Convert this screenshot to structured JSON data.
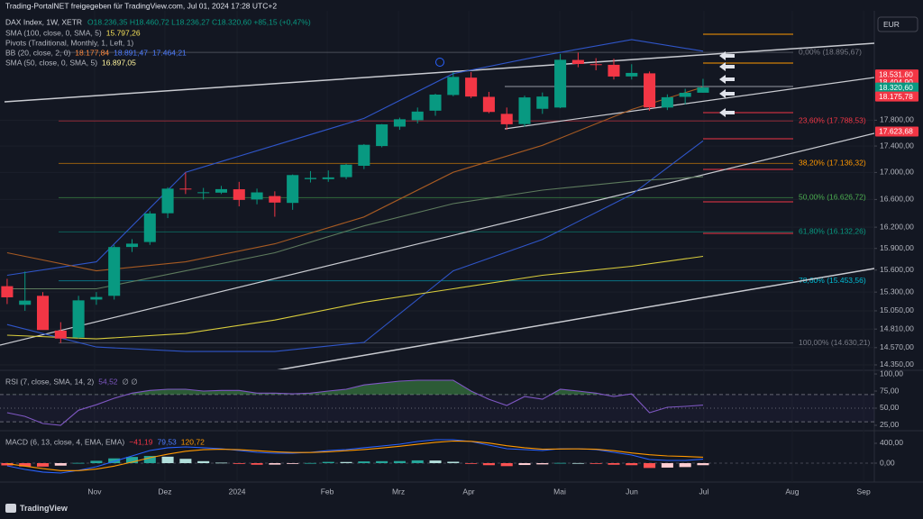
{
  "header": "Trading-PortalNET freigegeben für TradingView.com, Jul 01, 2024 17:28 UTC+2",
  "currency": "EUR",
  "brand": "TradingView",
  "chart_data": [
    {
      "type": "candlestick",
      "symbol": "DAX Index, 1W, XETR",
      "ohlc": "O18.236,35 H18.460,72 L18.236,27 C18.320,60 +85,15 (+0,47%)",
      "legend": [
        {
          "text": "SMA (100, close, 0, SMA, 5)",
          "values": [
            "15.797,26"
          ],
          "colors": [
            "#f7e25a"
          ]
        },
        {
          "text": "Pivots (Traditional, Monthly, 1, Left, 1)"
        },
        {
          "text": "BB (20, close, 2, 0)",
          "values": [
            "18.177,84",
            "18.891,47",
            "17.464,21"
          ],
          "colors": [
            "#ff8a3d",
            "#4d7cff",
            "#4d7cff"
          ]
        },
        {
          "text": "SMA (50, close, 0, SMA, 5)",
          "values": [
            "16.897,05"
          ],
          "colors": [
            "#fff59d"
          ]
        }
      ],
      "up_color": "#089981",
      "down_color": "#f23645",
      "open": [
        15380,
        15130,
        15250,
        14790,
        14700,
        15200,
        15250,
        15920,
        15990,
        16400,
        16760,
        16700,
        16700,
        16750,
        16600,
        16650,
        16550,
        16900,
        16900,
        16930,
        17100,
        17400,
        17700,
        17800,
        17950,
        18200,
        18480,
        18170,
        17900,
        17740,
        17980,
        18000,
        18770,
        18700,
        18690,
        18500,
        18550,
        18000,
        18170,
        18236.35
      ],
      "high": [
        15480,
        15580,
        15300,
        14900,
        15250,
        15300,
        15950,
        16030,
        16430,
        16780,
        17000,
        16770,
        16800,
        16860,
        16760,
        16720,
        16970,
        17020,
        17030,
        17130,
        17430,
        17740,
        17840,
        18000,
        18220,
        18570,
        18570,
        18250,
        18000,
        18190,
        18240,
        18870,
        18892,
        18800,
        18790,
        18700,
        18580,
        18210,
        18300,
        18460.72
      ],
      "low": [
        15140,
        15050,
        14800,
        14630,
        14690,
        15130,
        15200,
        15850,
        15950,
        16330,
        16680,
        16600,
        16680,
        16500,
        16530,
        16350,
        16450,
        16850,
        16860,
        16900,
        17050,
        17380,
        17650,
        17750,
        17870,
        18180,
        18150,
        17910,
        17650,
        17700,
        17900,
        17990,
        18650,
        18600,
        18450,
        18450,
        17950,
        17960,
        18050,
        18236.27
      ],
      "close": [
        15230,
        15186,
        14798,
        14687,
        15189,
        15234,
        15919,
        15967,
        16397,
        16759,
        16751,
        16706,
        16752,
        16594,
        16704,
        16555,
        16961,
        16918,
        16926,
        17117,
        17419,
        17735,
        17815,
        17936,
        18206,
        18492,
        18175,
        17930,
        17737,
        18161,
        18175,
        18773,
        18704,
        18693,
        18498,
        18557,
        18002,
        18164,
        18235,
        18320.6
      ],
      "indicators": [
        {
          "color": "#2f55c8",
          "x": [
            0,
            5,
            10,
            15,
            20,
            25,
            30,
            35,
            39
          ],
          "values": [
            15528,
            15713,
            17003,
            17411,
            17828,
            18545,
            18842,
            19110,
            18915
          ]
        },
        {
          "color": "#2f55c8",
          "x": [
            0,
            5,
            10,
            15,
            20,
            25,
            30,
            35,
            39
          ],
          "values": [
            14869,
            14578,
            14521,
            14521,
            14637,
            15589,
            16026,
            16672,
            17480
          ]
        },
        {
          "color": "#5d7a5d",
          "x": [
            0,
            5,
            10,
            15,
            20,
            25,
            30,
            35,
            39
          ],
          "values": [
            15345,
            15345,
            15589,
            15839,
            16218,
            16540,
            16737,
            16870,
            16937
          ]
        },
        {
          "color": "#a65a22",
          "x": [
            0,
            5,
            10,
            15,
            20,
            25,
            30,
            35,
            39
          ],
          "values": [
            15839,
            15589,
            15713,
            15964,
            16346,
            17003,
            17411,
            17969,
            18327
          ]
        },
        {
          "color": "#d8cc3c",
          "x": [
            0,
            5,
            10,
            15,
            20,
            25,
            30,
            35,
            39
          ],
          "values": [
            14730,
            14683,
            14753,
            14928,
            15165,
            15345,
            15528,
            15652,
            15789
          ]
        }
      ],
      "fib_levels": [
        {
          "label": "0,00% (18.895,67)",
          "value": 18895.67,
          "color": "#787b86"
        },
        {
          "label": "23,60% (17.788,53)",
          "value": 17788.53,
          "color": "#f23645"
        },
        {
          "label": "38,20% (17.136,32)",
          "value": 17136.32,
          "color": "#ff9800"
        },
        {
          "label": "50,00% (16.626,72)",
          "value": 16626.72,
          "color": "#4caf50"
        },
        {
          "label": "61,80% (16.132,26)",
          "value": 16132.26,
          "color": "#089981"
        },
        {
          "label": "78,60% (15.453,56)",
          "value": 15453.56,
          "color": "#00bcd4"
        },
        {
          "label": "100,00% (14.630,21)",
          "value": 14630.21,
          "color": "#787b86"
        }
      ],
      "price_badges": [
        {
          "label": "18.531,60",
          "value": 18531.6,
          "color": "#f23645"
        },
        {
          "label": "18.404,90",
          "value": 18404.9,
          "color": "#f23645"
        },
        {
          "label": "18.320,60",
          "value": 18320.6,
          "color": "#089981"
        },
        {
          "label": "18.175,78",
          "value": 18175.78,
          "color": "#f23645"
        },
        {
          "label": "17.623,68",
          "value": 17623.68,
          "color": "#f23645"
        }
      ],
      "log_scale": true,
      "grid": true,
      "xlim": [
        -0.4,
        48.6
      ],
      "xticks": [
        {
          "value": 4.9,
          "label": "Nov"
        },
        {
          "value": 8.84,
          "label": "Dez"
        },
        {
          "value": 12.89,
          "label": "2024"
        },
        {
          "value": 17.94,
          "label": "Feb"
        },
        {
          "value": 21.93,
          "label": "Mrz"
        },
        {
          "value": 25.87,
          "label": "Apr"
        },
        {
          "value": 30.97,
          "label": "Mai"
        },
        {
          "value": 35.01,
          "label": "Jun"
        },
        {
          "value": 39.05,
          "label": "Jul"
        },
        {
          "value": 44.0,
          "label": "Aug"
        },
        {
          "value": 48.0,
          "label": "Sep"
        }
      ],
      "ylim": [
        14293,
        19600
      ],
      "yticks": [
        {
          "value": 14350,
          "label": "14.350,00"
        },
        {
          "value": 14570,
          "label": "14.570,00"
        },
        {
          "value": 14810,
          "label": "14.810,00"
        },
        {
          "value": 15050,
          "label": "15.050,00"
        },
        {
          "value": 15300,
          "label": "15.300,00"
        },
        {
          "value": 15600,
          "label": "15.600,00"
        },
        {
          "value": 15900,
          "label": "15.900,00"
        },
        {
          "value": 16200,
          "label": "16.200,00"
        },
        {
          "value": 16600,
          "label": "16.600,00"
        },
        {
          "value": 17000,
          "label": "17.000,00"
        },
        {
          "value": 17400,
          "label": "17.400,00"
        },
        {
          "value": 17800,
          "label": "17.800,00"
        }
      ]
    },
    {
      "type": "line",
      "legend_text": "RSI (7, close, SMA, 14, 2)",
      "value_text": "54,52",
      "extra_text": "∅ ∅",
      "color": "#7e57c2",
      "fill_color": "#4caf50",
      "values": [
        43.4,
        38,
        27.6,
        25,
        47,
        55,
        64.5,
        72,
        76,
        77.6,
        77.6,
        75,
        76,
        76,
        72,
        72,
        71,
        72,
        75,
        77.6,
        84,
        86.8,
        89.5,
        90.8,
        90.8,
        90.8,
        75,
        63,
        54,
        67,
        63,
        77.6,
        75,
        72,
        67,
        71,
        43.4,
        51.3,
        52.6,
        54.52
      ],
      "bands": [
        70,
        50,
        30
      ],
      "ylim": [
        19.7,
        104
      ],
      "yticks": [
        {
          "value": 100,
          "label": "100,00"
        },
        {
          "value": 75,
          "label": "75,00"
        },
        {
          "value": 50,
          "label": "50,00"
        },
        {
          "value": 25,
          "label": "25,00"
        }
      ]
    },
    {
      "type": "macd",
      "legend_text": "MACD (6, 13, close, 4, EMA, EMA)",
      "value_texts": [
        "−41,19",
        "79,53",
        "120,72"
      ],
      "value_colors": [
        "#f23645",
        "#4d7cff",
        "#ff9800"
      ],
      "series": [
        {
          "color": "#2962ff",
          "values": [
            -55,
            -127,
            -180,
            -200,
            -145,
            -73,
            36,
            145,
            255,
            310,
            327,
            310,
            290,
            255,
            218,
            200,
            200,
            218,
            255,
            273,
            310,
            345,
            382,
            436,
            473,
            473,
            436,
            364,
            290,
            273,
            255,
            290,
            290,
            273,
            218,
            164,
            73,
            55,
            55,
            79.53
          ]
        },
        {
          "color": "#ff9800",
          "values": [
            -10,
            -60,
            -110,
            -150,
            -150,
            -120,
            -60,
            20,
            110,
            180,
            240,
            270,
            280,
            270,
            250,
            230,
            215,
            215,
            230,
            250,
            275,
            305,
            340,
            380,
            420,
            445,
            440,
            405,
            350,
            310,
            280,
            285,
            288,
            280,
            250,
            205,
            170,
            145,
            134,
            120.72
          ]
        }
      ],
      "histogram": [
        -45,
        -67,
        -70,
        -50,
        5,
        47,
        96,
        125,
        145,
        130,
        87,
        40,
        10,
        -15,
        -32,
        -30,
        -15,
        3,
        25,
        23,
        35,
        40,
        42,
        56,
        53,
        28,
        -4,
        -41,
        -60,
        -37,
        -25,
        5,
        2,
        -7,
        -32,
        -41,
        -97,
        -90,
        -79,
        -41.19
      ],
      "ylim": [
        -327,
        618
      ],
      "yticks": [
        {
          "value": 400,
          "label": "400,00"
        },
        {
          "value": 0,
          "label": "0,00"
        }
      ]
    }
  ]
}
